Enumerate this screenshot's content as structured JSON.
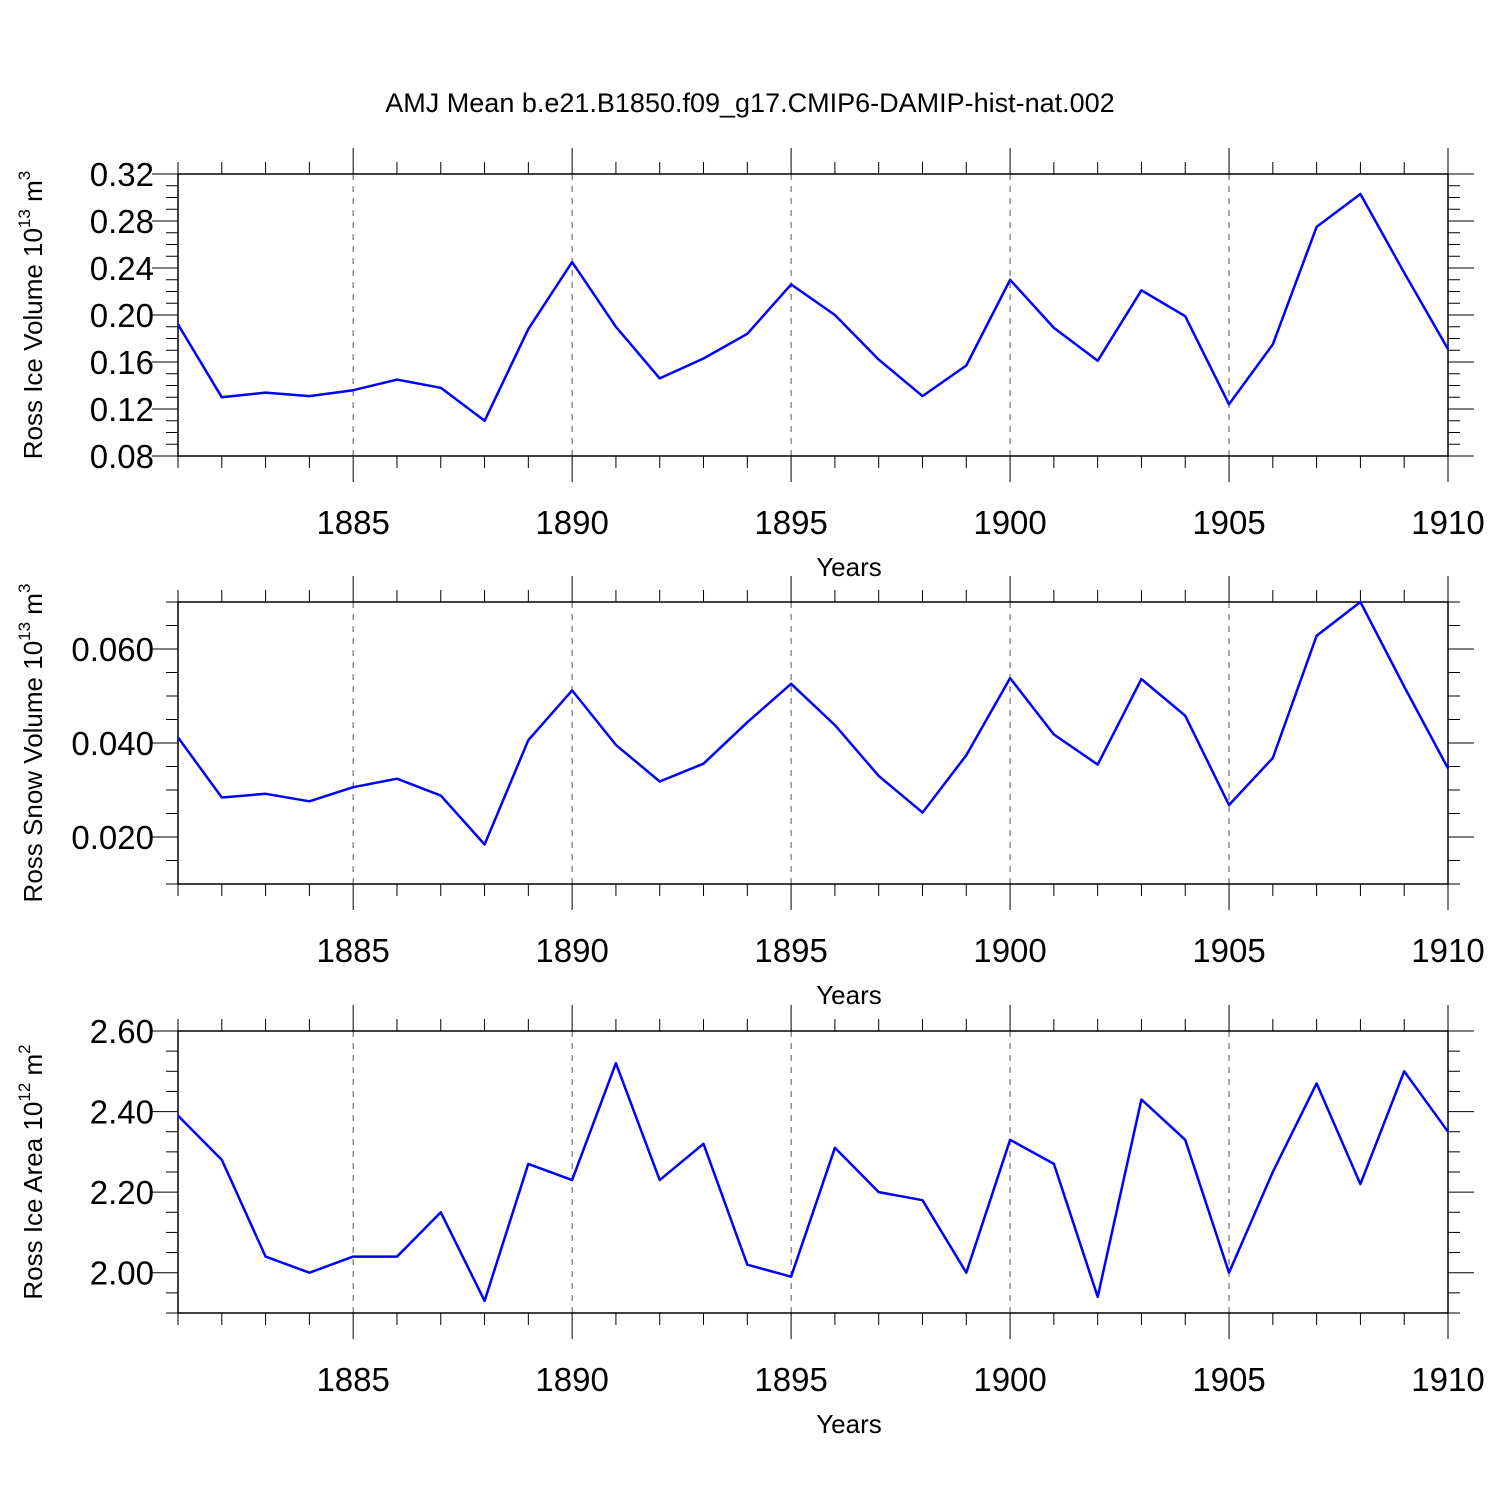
{
  "title": "AMJ Mean b.e21.B1850.f09_g17.CMIP6-DAMIP-hist-nat.002",
  "colors": {
    "line": "#0000ff",
    "axes": "#000000",
    "grid": "#555555"
  },
  "chart_data": [
    {
      "type": "line",
      "ylabel": {
        "text": "Ross Ice Volume 10",
        "sup": "13",
        "unit": " m",
        "unit_sup": "3"
      },
      "xlabel": "Years",
      "xlim": [
        1881,
        1910
      ],
      "ylim": [
        0.08,
        0.32
      ],
      "yticks": [
        "0.08",
        "0.12",
        "0.16",
        "0.20",
        "0.24",
        "0.28",
        "0.32"
      ],
      "xticks": [
        "1885",
        "1890",
        "1895",
        "1900",
        "1905",
        "1910"
      ],
      "grid": "vertical-dashed",
      "x": [
        1881,
        1882,
        1883,
        1884,
        1885,
        1886,
        1887,
        1888,
        1889,
        1890,
        1891,
        1892,
        1893,
        1894,
        1895,
        1896,
        1897,
        1898,
        1899,
        1900,
        1901,
        1902,
        1903,
        1904,
        1905,
        1906,
        1907,
        1908,
        1909,
        1910
      ],
      "series": [
        {
          "values": [
            0.192,
            0.13,
            0.134,
            0.131,
            0.136,
            0.145,
            0.138,
            0.11,
            0.188,
            0.245,
            0.19,
            0.146,
            0.163,
            0.184,
            0.226,
            0.2,
            0.162,
            0.131,
            0.157,
            0.23,
            0.189,
            0.161,
            0.221,
            0.199,
            0.124,
            0.175,
            0.275,
            0.303,
            0.236,
            0.171
          ]
        }
      ]
    },
    {
      "type": "line",
      "ylabel": {
        "text": "Ross Snow Volume 10",
        "sup": "13",
        "unit": " m",
        "unit_sup": "3"
      },
      "xlabel": "Years",
      "xlim": [
        1881,
        1910
      ],
      "ylim": [
        0.01,
        0.07
      ],
      "yticks": [
        "0.020",
        "0.040",
        "0.060"
      ],
      "ytick_values": [
        0.02,
        0.04,
        0.06
      ],
      "xticks": [
        "1885",
        "1890",
        "1895",
        "1900",
        "1905",
        "1910"
      ],
      "grid": "vertical-dashed",
      "x": [
        1881,
        1882,
        1883,
        1884,
        1885,
        1886,
        1887,
        1888,
        1889,
        1890,
        1891,
        1892,
        1893,
        1894,
        1895,
        1896,
        1897,
        1898,
        1899,
        1900,
        1901,
        1902,
        1903,
        1904,
        1905,
        1906,
        1907,
        1908,
        1909,
        1910
      ],
      "series": [
        {
          "values": [
            0.0412,
            0.0284,
            0.0292,
            0.0276,
            0.0306,
            0.0324,
            0.0288,
            0.0184,
            0.0406,
            0.0512,
            0.0396,
            0.0318,
            0.0356,
            0.0444,
            0.0526,
            0.0438,
            0.033,
            0.0252,
            0.0374,
            0.0538,
            0.0418,
            0.0354,
            0.0536,
            0.0458,
            0.0268,
            0.0368,
            0.0628,
            0.07,
            0.052,
            0.0346
          ]
        }
      ]
    },
    {
      "type": "line",
      "ylabel": {
        "text": "Ross Ice Area 10",
        "sup": "12",
        "unit": " m",
        "unit_sup": "2"
      },
      "xlabel": "Years",
      "xlim": [
        1881,
        1910
      ],
      "ylim": [
        1.9,
        2.6
      ],
      "yticks": [
        "2.00",
        "2.20",
        "2.40",
        "2.60"
      ],
      "ytick_values": [
        2.0,
        2.2,
        2.4,
        2.6
      ],
      "xticks": [
        "1885",
        "1890",
        "1895",
        "1900",
        "1905",
        "1910"
      ],
      "grid": "vertical-dashed",
      "x": [
        1881,
        1882,
        1883,
        1884,
        1885,
        1886,
        1887,
        1888,
        1889,
        1890,
        1891,
        1892,
        1893,
        1894,
        1895,
        1896,
        1897,
        1898,
        1899,
        1900,
        1901,
        1902,
        1903,
        1904,
        1905,
        1906,
        1907,
        1908,
        1909,
        1910
      ],
      "series": [
        {
          "values": [
            2.39,
            2.28,
            2.04,
            2.0,
            2.04,
            2.04,
            2.15,
            1.93,
            2.27,
            2.23,
            2.52,
            2.23,
            2.32,
            2.02,
            1.99,
            2.31,
            2.2,
            2.18,
            2.0,
            2.33,
            2.27,
            1.94,
            2.43,
            2.33,
            2.0,
            2.25,
            2.47,
            2.22,
            2.5,
            2.35
          ]
        }
      ]
    }
  ]
}
